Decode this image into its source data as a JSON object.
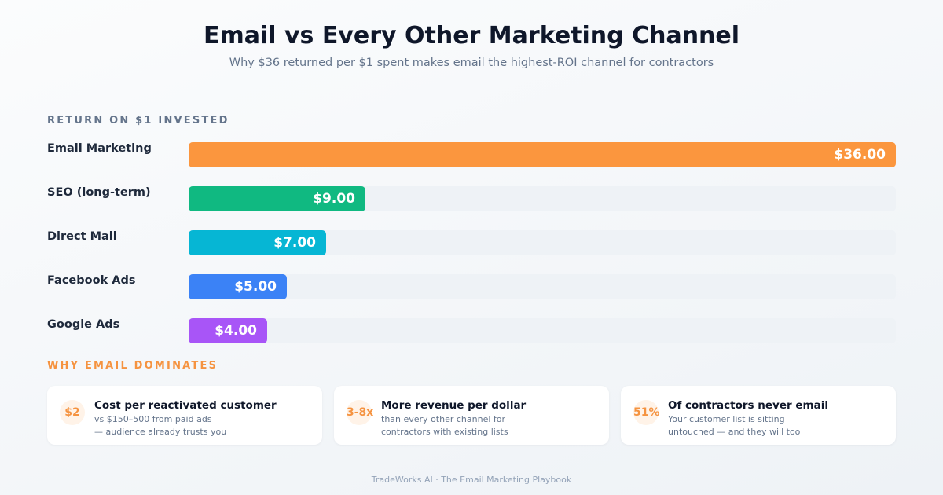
{
  "chart_data": {
    "type": "bar",
    "orientation": "horizontal",
    "title": "Email vs Every Other Marketing Channel",
    "subtitle": "Why $36 returned per $1 spent makes email the highest-ROI channel for contractors",
    "section_label": "RETURN ON $1 INVESTED",
    "categories": [
      "Email Marketing",
      "SEO (long-term)",
      "Direct Mail",
      "Facebook Ads",
      "Google Ads"
    ],
    "values": [
      36,
      9,
      7,
      5,
      4
    ],
    "value_labels": [
      "$36.00",
      "$9.00",
      "$7.00",
      "$5.00",
      "$4.00"
    ],
    "colors": [
      "#fb963e",
      "#10b981",
      "#06b6d4",
      "#3b82f6",
      "#a855f7"
    ],
    "xlim": [
      0,
      36
    ]
  },
  "insights": {
    "heading": "WHY EMAIL DOMINATES",
    "cards": [
      {
        "badge": "$2",
        "title": "Cost per reactivated customer",
        "lines": [
          "vs $150–500 from paid ads",
          "— audience already trusts you"
        ]
      },
      {
        "badge": "3-8x",
        "title": "More revenue per dollar",
        "lines": [
          "than every other channel for",
          "contractors with existing lists"
        ]
      },
      {
        "badge": "51%",
        "title": "Of contractors never email",
        "lines": [
          "Your customer list is sitting",
          "untouched — and they will too"
        ]
      }
    ]
  },
  "footer": "TradeWorks AI · The Email Marketing Playbook"
}
